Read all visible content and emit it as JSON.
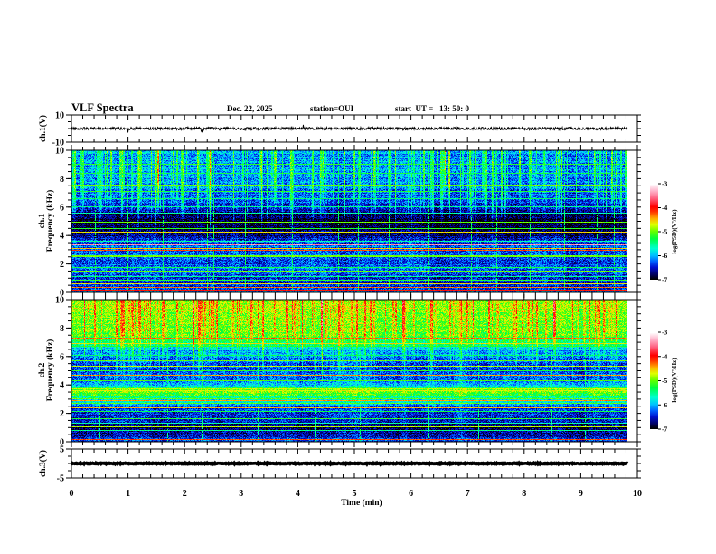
{
  "header": {
    "title": "VLF Spectra",
    "date": "Dec. 22, 2025",
    "station": "station=OUI",
    "start_time": "start  UT =   13: 50: 0"
  },
  "chart_data": {
    "type": "heatmap",
    "title": "VLF Spectra",
    "xlabel": "Time (min)",
    "xlim": [
      0,
      10
    ],
    "x_ticks": [
      "0",
      "1",
      "2",
      "3",
      "4",
      "5",
      "6",
      "7",
      "8",
      "9",
      "10"
    ],
    "x_minor_step": 0.2,
    "data_end_min": 9.83,
    "colormap": [
      [
        -7.0,
        "#000000"
      ],
      [
        -6.8,
        "#000060"
      ],
      [
        -6.5,
        "#0010d0"
      ],
      [
        -6.25,
        "#0060ff"
      ],
      [
        -6.0,
        "#00c0ff"
      ],
      [
        -5.7,
        "#00ffd0"
      ],
      [
        -5.3,
        "#00ff40"
      ],
      [
        -5.0,
        "#60ff00"
      ],
      [
        -4.7,
        "#e0ff00"
      ],
      [
        -4.45,
        "#ffb000"
      ],
      [
        -4.15,
        "#ff3000"
      ],
      [
        -3.95,
        "#ff0000"
      ],
      [
        -3.6,
        "#ff6080"
      ],
      [
        -3.3,
        "#ffb0c8"
      ],
      [
        -3.0,
        "#ffffff"
      ]
    ],
    "panels": [
      {
        "id": "ch1-waveform",
        "type": "line",
        "ylabel": "ch.1(V)",
        "ylim": [
          -10,
          10
        ],
        "y_ticks": [
          "10",
          "-10"
        ],
        "y_minor_step": 5,
        "mean_v": 0,
        "noise_amplitude_v": 1.0,
        "spike_amplitude_v": 3.0
      },
      {
        "id": "ch1-spectrogram",
        "type": "heatmap",
        "ylabel_line1": "ch.1",
        "ylabel_line2": "Frequency (kHz)",
        "ylim": [
          0,
          10
        ],
        "y_ticks": [
          "0",
          "2",
          "4",
          "6",
          "8",
          "10"
        ],
        "y_minor_step": 0.5,
        "colorbar": {
          "label": "log(PSD)(V²/Hz)",
          "range": [
            -7,
            -3
          ],
          "ticks": [
            "-3",
            "-4",
            "-5",
            "-6",
            "-7"
          ]
        },
        "features": {
          "background_profile": [
            [
              0,
              -6.2
            ],
            [
              0.8,
              -6.5
            ],
            [
              1.5,
              -6.2
            ],
            [
              2.2,
              -6.35
            ],
            [
              3.0,
              -6.15
            ],
            [
              3.5,
              -6.3
            ],
            [
              4.0,
              -6.75
            ],
            [
              4.6,
              -6.9
            ],
            [
              5.4,
              -6.85
            ],
            [
              6.0,
              -6.45
            ],
            [
              6.6,
              -6.25
            ],
            [
              8.0,
              -6.1
            ],
            [
              10.0,
              -6.05
            ]
          ],
          "noise": 0.35,
          "narrowband_lines": [
            [
              0.12,
              -4.0
            ],
            [
              0.35,
              -4.3
            ],
            [
              0.55,
              -4.6
            ],
            [
              0.85,
              -5.2
            ],
            [
              1.1,
              -5.5
            ],
            [
              1.45,
              -5.0
            ],
            [
              1.75,
              -5.3
            ],
            [
              2.05,
              -4.9
            ],
            [
              2.5,
              -5.0
            ],
            [
              2.56,
              -5.0
            ],
            [
              2.75,
              -5.4
            ],
            [
              2.95,
              -4.2
            ],
            [
              3.1,
              -4.5
            ],
            [
              3.35,
              -3.4
            ],
            [
              3.6,
              -5.6
            ],
            [
              4.2,
              -4.6
            ],
            [
              4.5,
              -5.2
            ],
            [
              4.8,
              -4.3
            ],
            [
              4.95,
              -5.0
            ],
            [
              5.55,
              -5.6
            ],
            [
              6.0,
              -5.5
            ],
            [
              6.6,
              -5.4
            ],
            [
              7.1,
              -5.2
            ],
            [
              7.55,
              -5.0
            ],
            [
              8.4,
              -5.3
            ],
            [
              9.05,
              -5.2
            ],
            [
              9.5,
              -5.4
            ]
          ],
          "sferic_count": 150,
          "sferic_amp_range": [
            0.5,
            1.3
          ],
          "sferic_min_freq_khz": [
            3.8,
            6.5
          ],
          "full_height_lines_min": [
            0.42,
            1.0,
            1.62,
            2.4,
            2.52,
            3.08,
            3.9,
            4.72,
            5.08,
            5.62,
            6.3,
            7.08,
            7.52,
            8.12,
            8.72,
            9.3,
            9.6
          ],
          "full_height_level": -5.4
        }
      },
      {
        "id": "ch2-spectrogram",
        "type": "heatmap",
        "ylabel_line1": "ch.2",
        "ylabel_line2": "Frequency (kHz)",
        "ylim": [
          0,
          10
        ],
        "y_ticks": [
          "0",
          "2",
          "4",
          "6",
          "8",
          "10"
        ],
        "y_minor_step": 0.5,
        "colorbar": {
          "label": "log(PSD)(V²/Hz)",
          "range": [
            -7,
            -3
          ],
          "ticks": [
            "-3",
            "-4",
            "-5",
            "-6",
            "-7"
          ]
        },
        "features": {
          "background_profile": [
            [
              0,
              -6.3
            ],
            [
              0.5,
              -6.6
            ],
            [
              1.0,
              -6.85
            ],
            [
              1.6,
              -6.4
            ],
            [
              2.0,
              -6.5
            ],
            [
              2.5,
              -6.2
            ],
            [
              2.8,
              -5.6
            ],
            [
              3.0,
              -5.8
            ],
            [
              3.3,
              -5.05
            ],
            [
              3.7,
              -5.0
            ],
            [
              3.9,
              -5.9
            ],
            [
              4.5,
              -6.25
            ],
            [
              5.5,
              -6.3
            ],
            [
              6.4,
              -6.05
            ],
            [
              6.8,
              -5.6
            ],
            [
              7.1,
              -5.2
            ],
            [
              8.0,
              -5.0
            ],
            [
              10.0,
              -4.85
            ]
          ],
          "noise": 0.35,
          "narrowband_lines": [
            [
              0.15,
              -4.2
            ],
            [
              0.45,
              -5.0
            ],
            [
              0.8,
              -5.5
            ],
            [
              1.05,
              -4.8
            ],
            [
              1.3,
              -5.6
            ],
            [
              1.6,
              -5.2
            ],
            [
              2.1,
              -5.3
            ],
            [
              2.4,
              -4.5
            ],
            [
              2.7,
              -5.0
            ],
            [
              2.9,
              -4.4
            ],
            [
              3.0,
              -5.0
            ],
            [
              3.6,
              -4.7
            ],
            [
              3.75,
              -4.8
            ],
            [
              4.3,
              -5.1
            ],
            [
              4.7,
              -4.4
            ],
            [
              5.0,
              -5.2
            ],
            [
              5.3,
              -4.8
            ],
            [
              5.7,
              -5.0
            ],
            [
              6.1,
              -5.4
            ],
            [
              6.7,
              -5.2
            ],
            [
              6.9,
              -4.6
            ],
            [
              7.3,
              -4.3
            ],
            [
              8.6,
              -4.9
            ]
          ],
          "sferic_count": 150,
          "sferic_amp_range": [
            0.3,
            0.9
          ],
          "sferic_min_freq_khz": [
            3.5,
            6.0
          ],
          "full_height_lines_min": [
            0.5,
            1.7,
            2.3,
            3.3,
            4.3,
            5.1,
            6.3,
            7.2,
            8.5,
            9.1
          ],
          "full_height_level": -5.5
        }
      },
      {
        "id": "ch3-waveform",
        "type": "line",
        "ylabel": "ch.3(V)",
        "ylim": [
          -5,
          5
        ],
        "y_ticks": [
          "5",
          "-5"
        ],
        "y_minor_step": 2.5,
        "mean_v": 0,
        "noise_amplitude_v": 0.15,
        "spike_amplitude_v": 0
      }
    ]
  }
}
